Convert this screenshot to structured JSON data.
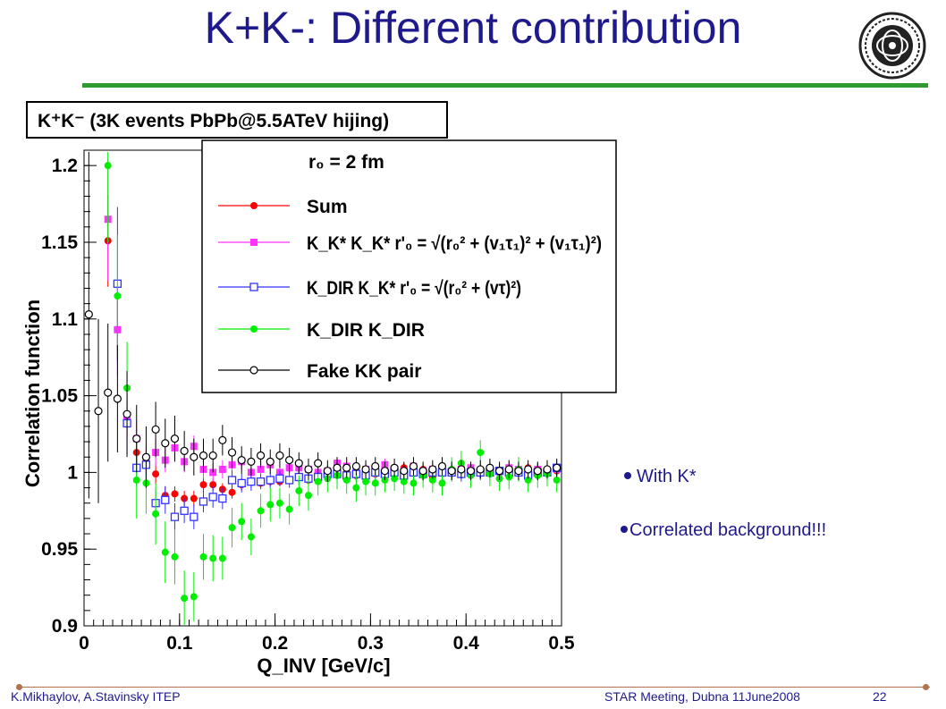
{
  "slide": {
    "title": "K+K-: Different contribution",
    "bullets": [
      "With K*",
      "Correlated background!!!"
    ],
    "footer_left": "K.Mikhaylov, A.Stavinsky ITEP",
    "footer_center": "STAR Meeting, Dubna 11June2008",
    "page_number": "22",
    "colors": {
      "title": "#1f1a8c",
      "rule": "#2f9a2f",
      "accent": "#b0734d"
    },
    "logo_icon": "itep-emblem-icon"
  },
  "chart_data": {
    "type": "scatter",
    "title": "K⁺K⁻ (3K events PbPb@5.5ATeV hijing)",
    "xlabel": "Q_INV [GeV/c]",
    "ylabel": "Correlation function",
    "xlim": [
      0,
      0.5
    ],
    "ylim": [
      0.9,
      1.21
    ],
    "xticks": [
      0,
      0.1,
      0.2,
      0.3,
      0.4,
      0.5
    ],
    "xtick_labels": [
      "0",
      "0.1",
      "0.2",
      "0.3",
      "0.4",
      "0.5"
    ],
    "yticks": [
      0.9,
      0.95,
      1,
      1.05,
      1.1,
      1.15,
      1.2
    ],
    "ytick_labels": [
      "0.9",
      "0.95",
      "1",
      "1.05",
      "1.1",
      "1.15",
      "1.2"
    ],
    "legend": {
      "header": "r₀ = 2 fm",
      "placement": "top-right",
      "entries": [
        {
          "label": "Sum"
        },
        {
          "label": "K_K* K_K*  r'₀ = √(r₀² + (v₁τ₁)² + (v₁τ₁)²)"
        },
        {
          "label": "K_DIR K_K*  r'₀ = √(r₀² + (vτ)²)"
        },
        {
          "label": "K_DIR K_DIR"
        },
        {
          "label": "Fake KK pair"
        }
      ]
    },
    "series": [
      {
        "name": "Sum",
        "color": "#ff0000",
        "marker": "filled-circle",
        "x": [
          0.025,
          0.035,
          0.045,
          0.055,
          0.065,
          0.075,
          0.085,
          0.095,
          0.105,
          0.115,
          0.125,
          0.135,
          0.145,
          0.155,
          0.165,
          0.175,
          0.185,
          0.195,
          0.205,
          0.215,
          0.225,
          0.235,
          0.245,
          0.255,
          0.265,
          0.275,
          0.285,
          0.295,
          0.305,
          0.315,
          0.325,
          0.335,
          0.345,
          0.355,
          0.365,
          0.375,
          0.385,
          0.395,
          0.405,
          0.415,
          0.425,
          0.435,
          0.445,
          0.455,
          0.465,
          0.475,
          0.485,
          0.495
        ],
        "y": [
          1.151,
          1.093,
          1.035,
          1.013,
          1.007,
          0.999,
          0.985,
          0.986,
          0.983,
          0.983,
          0.992,
          0.992,
          0.989,
          0.987,
          0.992,
          0.994,
          0.993,
          0.994,
          0.994,
          0.995,
          0.997,
          0.995,
          0.998,
          1.0,
          1.005,
          1.0,
          0.998,
          0.999,
          0.999,
          1.002,
          1.001,
          1.003,
          1.0,
          1.002,
          0.997,
          1.001,
          1.0,
          1.002,
          1.001,
          1.002,
          1.003,
          1.0,
          1.001,
          1.002,
          1.003,
          1.001,
          1.0,
          1.001
        ],
        "yerr": [
          0.03,
          0.02,
          0.012,
          0.008,
          0.008,
          0.007,
          0.006,
          0.005,
          0.005,
          0.005,
          0.005,
          0.004,
          0.004,
          0.004,
          0.004,
          0.004,
          0.003,
          0.003,
          0.003,
          0.003,
          0.003,
          0.003,
          0.003,
          0.003,
          0.003,
          0.003,
          0.003,
          0.003,
          0.003,
          0.003,
          0.003,
          0.003,
          0.003,
          0.003,
          0.003,
          0.003,
          0.003,
          0.003,
          0.003,
          0.003,
          0.003,
          0.003,
          0.003,
          0.003,
          0.003,
          0.003,
          0.003,
          0.003
        ]
      },
      {
        "name": "K_K* K_K*",
        "color": "#ff33ff",
        "marker": "filled-square",
        "x": [
          0.025,
          0.035,
          0.045,
          0.055,
          0.065,
          0.075,
          0.085,
          0.095,
          0.105,
          0.115,
          0.125,
          0.135,
          0.145,
          0.155,
          0.165,
          0.175,
          0.185,
          0.195,
          0.205,
          0.215,
          0.225,
          0.235,
          0.245,
          0.255,
          0.265,
          0.275,
          0.285,
          0.295,
          0.305,
          0.315,
          0.325,
          0.335,
          0.345,
          0.355,
          0.365,
          0.375,
          0.385,
          0.395,
          0.405,
          0.415,
          0.425,
          0.435,
          0.445,
          0.455,
          0.465,
          0.475,
          0.485,
          0.495
        ],
        "y": [
          1.165,
          1.093,
          1.036,
          1.022,
          1.007,
          1.013,
          1.008,
          1.016,
          1.007,
          1.017,
          1.002,
          1.0,
          1.002,
          1.005,
          1.007,
          1.0,
          1.002,
          1.005,
          1.0,
          1.003,
          1.003,
          1.002,
          1.0,
          1.001,
          1.006,
          1.004,
          1.0,
          1.002,
          1.003,
          1.005,
          1.002,
          1.001,
          1.004,
          1.001,
          1.002,
          1.003,
          1.001,
          1.002,
          1.003,
          1.0,
          1.002,
          1.001,
          1.003,
          1.002,
          1.001,
          1.002,
          1.001,
          1.002
        ],
        "yerr": [
          0.04,
          0.03,
          0.015,
          0.012,
          0.01,
          0.009,
          0.008,
          0.008,
          0.007,
          0.007,
          0.006,
          0.006,
          0.006,
          0.005,
          0.005,
          0.005,
          0.005,
          0.004,
          0.004,
          0.004,
          0.004,
          0.004,
          0.004,
          0.004,
          0.004,
          0.004,
          0.004,
          0.004,
          0.004,
          0.004,
          0.004,
          0.004,
          0.004,
          0.004,
          0.004,
          0.004,
          0.004,
          0.004,
          0.004,
          0.004,
          0.004,
          0.004,
          0.004,
          0.004,
          0.004,
          0.004,
          0.004,
          0.004
        ]
      },
      {
        "name": "K_DIR K_K*",
        "color": "#3333ff",
        "marker": "open-square",
        "x": [
          0.035,
          0.045,
          0.055,
          0.065,
          0.075,
          0.085,
          0.095,
          0.105,
          0.115,
          0.125,
          0.135,
          0.145,
          0.155,
          0.165,
          0.175,
          0.185,
          0.195,
          0.205,
          0.215,
          0.225,
          0.235,
          0.245,
          0.255,
          0.265,
          0.275,
          0.285,
          0.295,
          0.305,
          0.315,
          0.325,
          0.335,
          0.345,
          0.355,
          0.365,
          0.375,
          0.385,
          0.395,
          0.405,
          0.415,
          0.425,
          0.435,
          0.445,
          0.455,
          0.465,
          0.475,
          0.485,
          0.495
        ],
        "y": [
          1.123,
          1.032,
          1.003,
          1.005,
          0.98,
          0.982,
          0.971,
          0.975,
          0.971,
          0.981,
          0.984,
          0.983,
          0.995,
          0.993,
          0.994,
          0.994,
          0.995,
          0.996,
          0.995,
          0.997,
          0.996,
          0.997,
          0.999,
          0.999,
          0.998,
          0.999,
          0.998,
          1.0,
          0.999,
          1.0,
          0.998,
          1.0,
          0.999,
          1.0,
          1.0,
          1.0,
          0.999,
          1.0,
          1.0,
          1.0,
          1.001,
          1.0,
          1.0,
          0.998,
          1.0,
          1.0,
          1.003
        ],
        "yerr": [
          0.05,
          0.02,
          0.012,
          0.01,
          0.01,
          0.009,
          0.009,
          0.008,
          0.008,
          0.007,
          0.007,
          0.007,
          0.006,
          0.006,
          0.006,
          0.005,
          0.005,
          0.005,
          0.005,
          0.005,
          0.005,
          0.005,
          0.005,
          0.005,
          0.005,
          0.005,
          0.005,
          0.005,
          0.005,
          0.005,
          0.005,
          0.005,
          0.005,
          0.005,
          0.005,
          0.005,
          0.005,
          0.005,
          0.005,
          0.005,
          0.005,
          0.005,
          0.005,
          0.005,
          0.005,
          0.005,
          0.005
        ]
      },
      {
        "name": "K_DIR K_DIR",
        "color": "#00ee00",
        "marker": "filled-circle",
        "x": [
          0.025,
          0.035,
          0.045,
          0.055,
          0.065,
          0.075,
          0.085,
          0.095,
          0.105,
          0.115,
          0.125,
          0.135,
          0.145,
          0.155,
          0.165,
          0.175,
          0.185,
          0.195,
          0.205,
          0.215,
          0.225,
          0.235,
          0.245,
          0.255,
          0.265,
          0.275,
          0.285,
          0.295,
          0.305,
          0.315,
          0.325,
          0.335,
          0.345,
          0.355,
          0.365,
          0.375,
          0.385,
          0.395,
          0.405,
          0.415,
          0.425,
          0.435,
          0.445,
          0.455,
          0.465,
          0.475,
          0.485,
          0.495
        ],
        "y": [
          1.2,
          1.115,
          1.055,
          0.995,
          0.993,
          0.973,
          0.948,
          0.945,
          0.918,
          0.919,
          0.945,
          0.944,
          0.944,
          0.964,
          0.968,
          0.958,
          0.975,
          0.979,
          0.98,
          0.976,
          0.988,
          0.985,
          0.994,
          0.996,
          0.998,
          0.995,
          0.99,
          0.994,
          0.993,
          0.995,
          0.996,
          0.994,
          0.993,
          0.998,
          0.995,
          0.993,
          1.002,
          1.006,
          0.998,
          1.013,
          0.999,
          0.996,
          0.997,
          1.002,
          0.995,
          0.998,
          0.999,
          0.995
        ],
        "yerr": [
          0.05,
          0.04,
          0.03,
          0.025,
          0.02,
          0.02,
          0.02,
          0.018,
          0.018,
          0.016,
          0.015,
          0.015,
          0.014,
          0.013,
          0.012,
          0.012,
          0.011,
          0.011,
          0.01,
          0.01,
          0.01,
          0.01,
          0.009,
          0.009,
          0.009,
          0.009,
          0.009,
          0.009,
          0.008,
          0.008,
          0.008,
          0.008,
          0.008,
          0.008,
          0.008,
          0.008,
          0.008,
          0.008,
          0.008,
          0.008,
          0.008,
          0.008,
          0.008,
          0.008,
          0.008,
          0.008,
          0.008,
          0.008
        ]
      },
      {
        "name": "Fake KK pair",
        "color": "#000000",
        "marker": "open-circle",
        "x": [
          0.005,
          0.015,
          0.025,
          0.035,
          0.045,
          0.055,
          0.065,
          0.075,
          0.085,
          0.095,
          0.105,
          0.115,
          0.125,
          0.135,
          0.145,
          0.155,
          0.165,
          0.175,
          0.185,
          0.195,
          0.205,
          0.215,
          0.225,
          0.235,
          0.245,
          0.255,
          0.265,
          0.275,
          0.285,
          0.295,
          0.305,
          0.315,
          0.325,
          0.335,
          0.345,
          0.355,
          0.365,
          0.375,
          0.385,
          0.395,
          0.405,
          0.415,
          0.425,
          0.435,
          0.445,
          0.455,
          0.465,
          0.475,
          0.485,
          0.495
        ],
        "y": [
          1.103,
          1.04,
          1.052,
          1.048,
          1.038,
          1.022,
          1.01,
          1.028,
          1.019,
          1.022,
          1.014,
          1.01,
          1.011,
          1.011,
          1.021,
          1.013,
          1.008,
          1.007,
          1.011,
          1.007,
          1.011,
          1.008,
          1.006,
          1.002,
          1.006,
          1.001,
          1.003,
          1.003,
          1.004,
          1.002,
          1.004,
          1.001,
          1.003,
          1.001,
          1.004,
          1.001,
          1.002,
          1.004,
          1.001,
          1.002,
          1.001,
          1.002,
          1.003,
          1.001,
          1.002,
          1.001,
          1.002,
          1.001,
          1.002,
          1.003
        ],
        "yerr": [
          0.12,
          0.06,
          0.045,
          0.035,
          0.028,
          0.022,
          0.02,
          0.018,
          0.016,
          0.015,
          0.013,
          0.012,
          0.011,
          0.011,
          0.01,
          0.01,
          0.009,
          0.009,
          0.008,
          0.008,
          0.008,
          0.008,
          0.007,
          0.007,
          0.007,
          0.007,
          0.007,
          0.007,
          0.006,
          0.006,
          0.006,
          0.006,
          0.006,
          0.006,
          0.006,
          0.006,
          0.006,
          0.006,
          0.006,
          0.006,
          0.006,
          0.006,
          0.006,
          0.006,
          0.006,
          0.006,
          0.006,
          0.006,
          0.006,
          0.006
        ]
      }
    ]
  }
}
